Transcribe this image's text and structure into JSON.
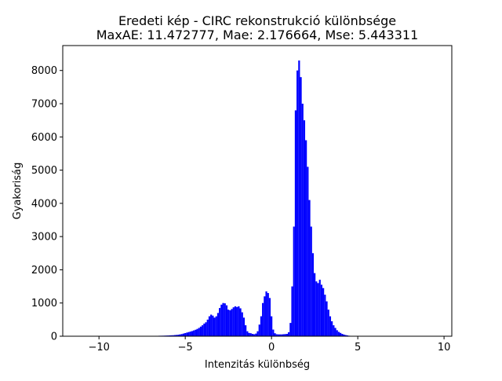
{
  "chart_data": {
    "type": "bar",
    "title_line1": "Eredeti kép - CIRC rekonstrukció különbsége",
    "title_line2": "MaxAE: 11.472777, Mae: 2.176664, Mse: 5.443311",
    "xlabel": "Intenzitás különbség",
    "ylabel": "Gyakoriság",
    "xlim": [
      -12.1,
      10.45
    ],
    "ylim": [
      0,
      8750
    ],
    "xticks": [
      -10,
      -5,
      0,
      5,
      10
    ],
    "xtick_labels": [
      "−10",
      "−5",
      "0",
      "5",
      "10"
    ],
    "yticks": [
      0,
      1000,
      2000,
      3000,
      4000,
      5000,
      6000,
      7000,
      8000
    ],
    "ytick_labels": [
      "0",
      "1000",
      "2000",
      "3000",
      "4000",
      "5000",
      "6000",
      "7000",
      "8000"
    ],
    "bar_color": "#0000ff",
    "bins": {
      "x": [
        -7.0,
        -6.9,
        -6.8,
        -6.7,
        -6.6,
        -6.5,
        -6.4,
        -6.3,
        -6.2,
        -6.1,
        -6.0,
        -5.9,
        -5.8,
        -5.7,
        -5.6,
        -5.5,
        -5.4,
        -5.3,
        -5.2,
        -5.1,
        -5.0,
        -4.9,
        -4.8,
        -4.7,
        -4.6,
        -4.5,
        -4.4,
        -4.3,
        -4.2,
        -4.1,
        -4.0,
        -3.9,
        -3.8,
        -3.7,
        -3.6,
        -3.5,
        -3.4,
        -3.3,
        -3.2,
        -3.1,
        -3.0,
        -2.9,
        -2.8,
        -2.7,
        -2.6,
        -2.5,
        -2.4,
        -2.3,
        -2.2,
        -2.1,
        -2.0,
        -1.9,
        -1.8,
        -1.7,
        -1.6,
        -1.5,
        -1.4,
        -1.3,
        -1.2,
        -1.1,
        -1.0,
        -0.9,
        -0.8,
        -0.7,
        -0.6,
        -0.5,
        -0.4,
        -0.3,
        -0.2,
        -0.1,
        0.0,
        0.1,
        0.2,
        0.3,
        0.4,
        0.5,
        0.6,
        0.7,
        0.8,
        0.9,
        1.0,
        1.1,
        1.2,
        1.3,
        1.4,
        1.5,
        1.6,
        1.7,
        1.8,
        1.9,
        2.0,
        2.1,
        2.2,
        2.3,
        2.4,
        2.5,
        2.6,
        2.7,
        2.8,
        2.9,
        3.0,
        3.1,
        3.2,
        3.3,
        3.4,
        3.5,
        3.6,
        3.7,
        3.8,
        3.9,
        4.0,
        4.1,
        4.2,
        4.3,
        4.4,
        4.5,
        4.6,
        4.7,
        4.8,
        4.9,
        5.0,
        5.1,
        5.2
      ],
      "width": 0.1,
      "counts": [
        5,
        8,
        10,
        12,
        12,
        14,
        15,
        16,
        18,
        20,
        22,
        25,
        28,
        30,
        35,
        40,
        45,
        55,
        65,
        80,
        95,
        110,
        125,
        140,
        155,
        175,
        195,
        220,
        250,
        290,
        330,
        380,
        420,
        500,
        600,
        650,
        620,
        560,
        600,
        700,
        850,
        950,
        1000,
        990,
        930,
        800,
        780,
        820,
        870,
        900,
        880,
        900,
        840,
        720,
        560,
        330,
        150,
        100,
        90,
        70,
        60,
        80,
        150,
        350,
        600,
        1000,
        1200,
        1350,
        1300,
        1150,
        600,
        200,
        90,
        60,
        55,
        55,
        55,
        60,
        65,
        70,
        120,
        400,
        1500,
        3300,
        6800,
        8000,
        8300,
        7800,
        7000,
        6500,
        5900,
        5100,
        4100,
        3300,
        2500,
        1900,
        1650,
        1600,
        1700,
        1550,
        1450,
        1250,
        1050,
        800,
        600,
        450,
        330,
        250,
        180,
        130,
        100,
        70,
        50,
        35,
        25,
        15,
        10,
        6,
        4,
        3,
        2,
        1,
        1
      ]
    }
  }
}
